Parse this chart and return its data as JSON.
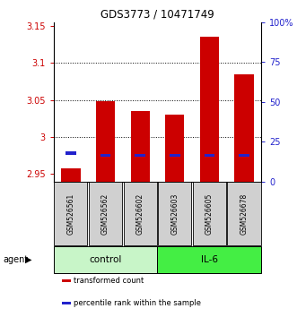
{
  "title": "GDS3773 / 10471749",
  "samples": [
    "GSM526561",
    "GSM526562",
    "GSM526602",
    "GSM526603",
    "GSM526605",
    "GSM526678"
  ],
  "red_values": [
    2.958,
    3.048,
    3.035,
    3.03,
    3.135,
    3.085
  ],
  "blue_values": [
    2.978,
    2.975,
    2.975,
    2.975,
    2.975,
    2.975
  ],
  "ymin": 2.94,
  "ymax": 3.155,
  "yticks": [
    2.95,
    3.0,
    3.05,
    3.1,
    3.15
  ],
  "ytick_labels": [
    "2.95",
    "3",
    "3.05",
    "3.1",
    "3.15"
  ],
  "right_yticks": [
    0,
    25,
    50,
    75,
    100
  ],
  "right_ytick_labels": [
    "0",
    "25",
    "50",
    "75",
    "100%"
  ],
  "bar_width": 0.55,
  "red_color": "#cc0000",
  "blue_color": "#2222cc",
  "left_tick_color": "#cc0000",
  "right_tick_color": "#2222cc",
  "baseline": 2.94,
  "grid_lines": [
    3.0,
    3.05,
    3.1
  ],
  "control_color": "#c8f5c8",
  "il6_color": "#44ee44",
  "gray_box_color": "#d0d0d0",
  "legend_items": [
    {
      "color": "#cc0000",
      "label": "transformed count"
    },
    {
      "color": "#2222cc",
      "label": "percentile rank within the sample"
    }
  ]
}
